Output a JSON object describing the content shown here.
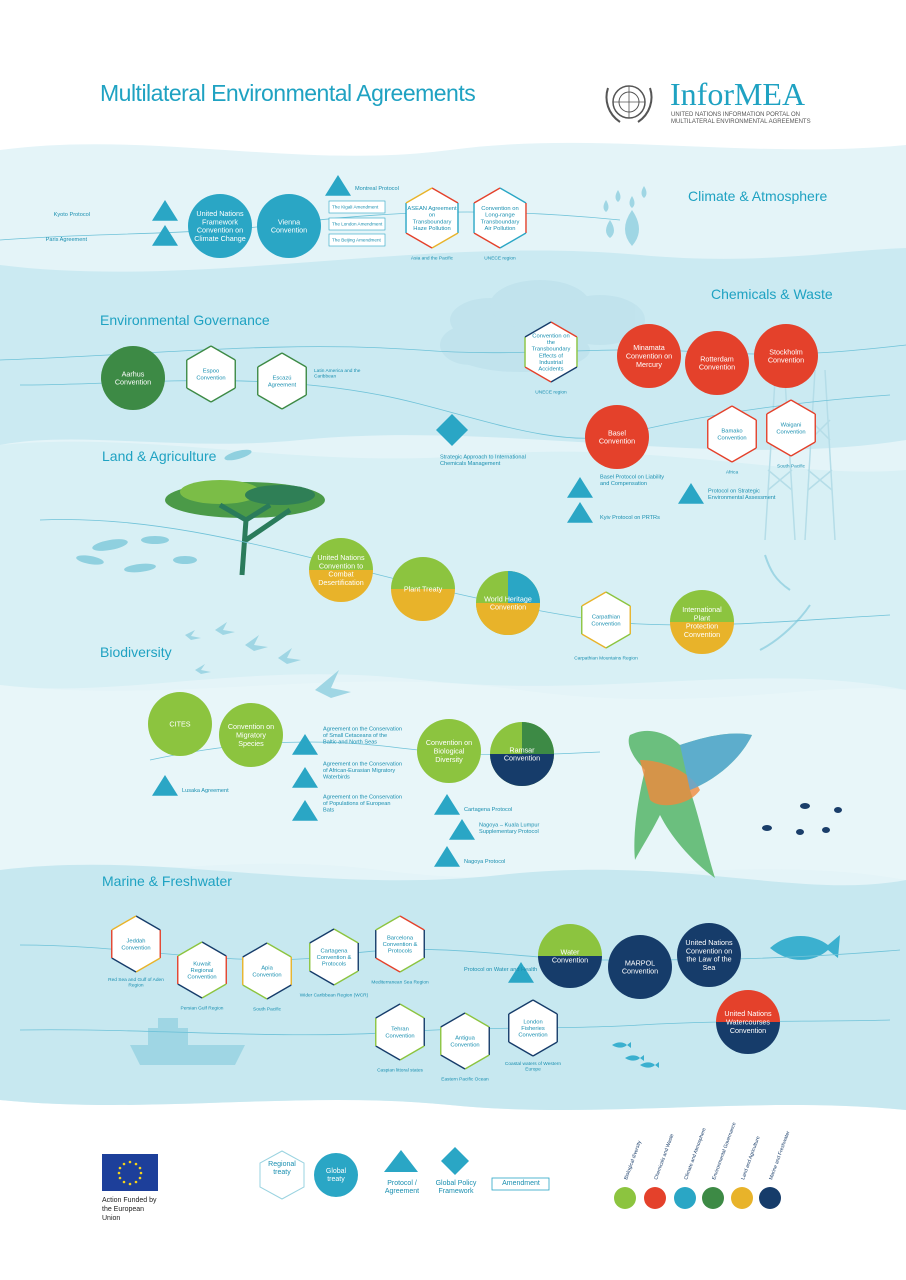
{
  "header": {
    "title": "Multilateral Environmental Agreements",
    "brand": "InforMEA",
    "brand_subtitle": "UNITED NATIONS INFORMATION PORTAL ON MULTILATERAL ENVIRONMENTAL AGREEMENTS"
  },
  "colors": {
    "biodiversity": "#8cc43f",
    "chemicals": "#e4412b",
    "climate": "#2aa6c5",
    "governance": "#3d8a45",
    "land": "#e8b32a",
    "marine": "#163c6a",
    "regional_outline": "#9ad3e0",
    "title": "#1fa2c2"
  },
  "sections": [
    {
      "id": "climate",
      "title": "Climate & Atmosphere"
    },
    {
      "id": "chemicals",
      "title": "Chemicals & Waste"
    },
    {
      "id": "governance",
      "title": "Environmental Governance"
    },
    {
      "id": "land",
      "title": "Land & Agriculture"
    },
    {
      "id": "biodiversity",
      "title": "Biodiversity"
    },
    {
      "id": "marine",
      "title": "Marine & Freshwater"
    }
  ],
  "nodes": [
    {
      "id": "unfccc",
      "kind": "circle",
      "label": "United Nations Framework Convention on Climate Change",
      "colors": [
        "climate"
      ]
    },
    {
      "id": "vienna",
      "kind": "circle",
      "label": "Vienna Convention",
      "colors": [
        "climate"
      ]
    },
    {
      "id": "kyoto",
      "kind": "triangle",
      "label": "Kyoto Protocol",
      "colors": [
        "climate"
      ]
    },
    {
      "id": "paris",
      "kind": "triangle",
      "label": "Paris Agreement",
      "colors": [
        "climate"
      ]
    },
    {
      "id": "montreal",
      "kind": "triangle",
      "label": "Montreal Protocol",
      "colors": [
        "climate"
      ]
    },
    {
      "id": "kigali",
      "kind": "rect",
      "label": "The Kigali Amendment"
    },
    {
      "id": "london_am",
      "kind": "rect",
      "label": "The London Amendment"
    },
    {
      "id": "beijing",
      "kind": "rect",
      "label": "The Beijing Amendment"
    },
    {
      "id": "asean",
      "kind": "hex",
      "label": "ASEAN Agreement on Transboundary Haze Pollution",
      "sub": "Asia and the Pacific",
      "colors": [
        "chemicals",
        "climate",
        "land"
      ]
    },
    {
      "id": "lrtap",
      "kind": "hex",
      "label": "Convention on Long-range Transboundary Air Pollution",
      "sub": "UNECE region",
      "colors": [
        "climate",
        "chemicals"
      ]
    },
    {
      "id": "aarhus",
      "kind": "circle",
      "label": "Aarhus Convention",
      "colors": [
        "governance"
      ]
    },
    {
      "id": "espoo",
      "kind": "hex",
      "label": "Espoo Convention",
      "colors": [
        "governance"
      ]
    },
    {
      "id": "escazu",
      "kind": "hex",
      "label": "Escazú Agreement",
      "sub": "Latin America and the Caribbean",
      "colors": [
        "governance"
      ]
    },
    {
      "id": "saicm",
      "kind": "diamond",
      "label": "Strategic Approach to International Chemicals Management",
      "colors": [
        "climate"
      ]
    },
    {
      "id": "industrial",
      "kind": "hex",
      "label": "Convention on the Transboundary Effects of Industrial Accidents",
      "sub": "UNECE region",
      "colors": [
        "chemicals",
        "biodiversity",
        "marine"
      ]
    },
    {
      "id": "minamata",
      "kind": "circle",
      "label": "Minamata Convention on Mercury",
      "colors": [
        "chemicals"
      ]
    },
    {
      "id": "rotterdam",
      "kind": "circle",
      "label": "Rotterdam Convention",
      "colors": [
        "chemicals"
      ]
    },
    {
      "id": "stockholm",
      "kind": "circle",
      "label": "Stockholm Convention",
      "colors": [
        "chemicals"
      ]
    },
    {
      "id": "basel",
      "kind": "circle",
      "label": "Basel Convention",
      "colors": [
        "chemicals"
      ]
    },
    {
      "id": "bamako",
      "kind": "hex",
      "label": "Bamako Convention",
      "sub": "Africa",
      "colors": [
        "chemicals"
      ]
    },
    {
      "id": "waigani",
      "kind": "hex",
      "label": "Waigani Convention",
      "sub": "South Pacific",
      "colors": [
        "chemicals"
      ]
    },
    {
      "id": "basel_liab",
      "kind": "triangle",
      "label": "Basel Protocol on Liability and Compensation",
      "colors": [
        "climate"
      ]
    },
    {
      "id": "kyiv",
      "kind": "triangle",
      "label": "Kyiv Protocol on PRTRs",
      "colors": [
        "climate"
      ]
    },
    {
      "id": "sea_proto",
      "kind": "triangle",
      "label": "Protocol on Strategic Environmental Assessment",
      "colors": [
        "climate"
      ]
    },
    {
      "id": "unccd",
      "kind": "circle",
      "label": "United Nations Convention to Combat Desertification",
      "colors": [
        "biodiversity",
        "land"
      ]
    },
    {
      "id": "plant",
      "kind": "circle",
      "label": "Plant Treaty",
      "colors": [
        "biodiversity",
        "land"
      ]
    },
    {
      "id": "whc",
      "kind": "circle",
      "label": "World Heritage Convention",
      "colors": [
        "biodiversity",
        "land",
        "climate"
      ]
    },
    {
      "id": "carpathian",
      "kind": "hex",
      "label": "Carpathian Convention",
      "sub": "Carpathian Mountains Region",
      "colors": [
        "biodiversity",
        "land"
      ]
    },
    {
      "id": "ippc",
      "kind": "circle",
      "label": "International Plant Protection Convention",
      "colors": [
        "biodiversity",
        "land"
      ]
    },
    {
      "id": "cites",
      "kind": "circle",
      "label": "CITES",
      "colors": [
        "biodiversity"
      ]
    },
    {
      "id": "cms",
      "kind": "circle",
      "label": "Convention on Migratory Species",
      "colors": [
        "biodiversity"
      ]
    },
    {
      "id": "lusaka",
      "kind": "triangle",
      "label": "Lusaka Agreement",
      "colors": [
        "climate"
      ]
    },
    {
      "id": "ascobans",
      "kind": "triangle",
      "label": "Agreement on the Conservation of Small Cetaceans of the Baltic and North Seas",
      "colors": [
        "climate"
      ]
    },
    {
      "id": "aewa",
      "kind": "triangle",
      "label": "Agreement on the Conservation of African-Eurasian Migratory Waterbirds",
      "colors": [
        "climate"
      ]
    },
    {
      "id": "eurobats",
      "kind": "triangle",
      "label": "Agreement on the Conservation of Populations of European Bats",
      "colors": [
        "climate"
      ]
    },
    {
      "id": "cbd",
      "kind": "circle",
      "label": "Convention on Biological Diversity",
      "colors": [
        "biodiversity"
      ]
    },
    {
      "id": "ramsar",
      "kind": "circle",
      "label": "Ramsar Convention",
      "colors": [
        "biodiversity",
        "governance",
        "marine"
      ]
    },
    {
      "id": "cartagena_p",
      "kind": "triangle",
      "label": "Cartagena Protocol",
      "colors": [
        "climate"
      ]
    },
    {
      "id": "nagoya_kl",
      "kind": "triangle",
      "label": "Nagoya – Kuala Lumpur Supplementary Protocol",
      "colors": [
        "climate"
      ]
    },
    {
      "id": "nagoya",
      "kind": "triangle",
      "label": "Nagoya Protocol",
      "colors": [
        "climate"
      ]
    },
    {
      "id": "jeddah",
      "kind": "hex",
      "label": "Jeddah Convention",
      "sub": "Red Sea and Gulf of Aden Region",
      "colors": [
        "marine",
        "chemicals",
        "land"
      ]
    },
    {
      "id": "kuwait",
      "kind": "hex",
      "label": "Kuwait Regional Convention",
      "sub": "Persian Gulf Region",
      "colors": [
        "marine",
        "chemicals",
        "biodiversity"
      ]
    },
    {
      "id": "apia",
      "kind": "hex",
      "label": "Apia Convention",
      "sub": "South Pacific",
      "colors": [
        "biodiversity",
        "land",
        "marine"
      ]
    },
    {
      "id": "cartagena_c",
      "kind": "hex",
      "label": "Cartagena Convention & Protocols",
      "sub": "Wider Caribbean Region (WCR)",
      "colors": [
        "biodiversity",
        "marine"
      ]
    },
    {
      "id": "barcelona",
      "kind": "hex",
      "label": "Barcelona Convention & Protocols",
      "sub": "Mediterranean Sea Region",
      "colors": [
        "chemicals",
        "marine",
        "biodiversity"
      ]
    },
    {
      "id": "water",
      "kind": "circle",
      "label": "Water Convention",
      "colors": [
        "biodiversity",
        "marine"
      ]
    },
    {
      "id": "marpol",
      "kind": "circle",
      "label": "MARPOL Convention",
      "colors": [
        "marine"
      ]
    },
    {
      "id": "unclos",
      "kind": "circle",
      "label": "United Nations Convention on the Law of the Sea",
      "colors": [
        "marine"
      ]
    },
    {
      "id": "watercourses",
      "kind": "circle",
      "label": "United Nations Watercourses Convention",
      "colors": [
        "chemicals",
        "marine"
      ]
    },
    {
      "id": "water_health",
      "kind": "triangle",
      "label": "Protocol on Water and Health",
      "colors": [
        "climate"
      ]
    },
    {
      "id": "tehran",
      "kind": "hex",
      "label": "Tehran Convention",
      "sub": "Caspian littoral states",
      "colors": [
        "biodiversity",
        "marine"
      ]
    },
    {
      "id": "antigua",
      "kind": "hex",
      "label": "Antigua Convention",
      "sub": "Eastern Pacific Ocean",
      "colors": [
        "biodiversity",
        "marine"
      ]
    },
    {
      "id": "london_fish",
      "kind": "hex",
      "label": "London Fisheries Convention",
      "sub": "Coastal waters of Western Europe",
      "colors": [
        "marine"
      ]
    }
  ],
  "legend": {
    "funded_by": "Action Funded by the European Union",
    "shapes": [
      {
        "id": "regional",
        "label": "Regional treaty"
      },
      {
        "id": "global",
        "label": "Global treaty"
      },
      {
        "id": "protocol",
        "label": "Protocol / Agreement"
      },
      {
        "id": "policy",
        "label": "Global Policy Framework"
      },
      {
        "id": "amendment",
        "label": "Amendment"
      }
    ],
    "themes": [
      {
        "label": "Biological diversity",
        "color": "biodiversity"
      },
      {
        "label": "Chemicals and Waste",
        "color": "chemicals"
      },
      {
        "label": "Climate and Atmosphere",
        "color": "climate"
      },
      {
        "label": "Environmental Governance",
        "color": "governance"
      },
      {
        "label": "Land and Agriculture",
        "color": "land"
      },
      {
        "label": "Marine and Freshwater",
        "color": "marine"
      }
    ]
  }
}
